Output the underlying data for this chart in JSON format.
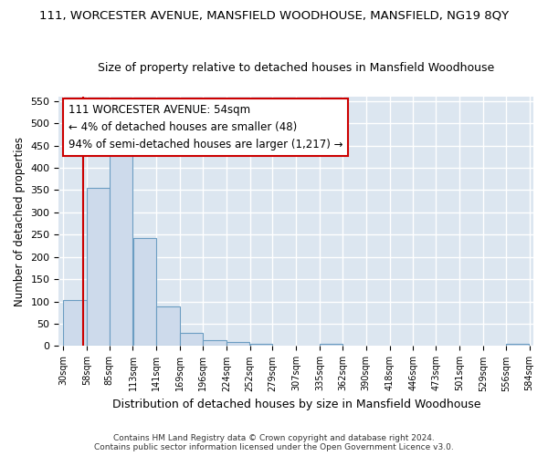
{
  "title": "111, WORCESTER AVENUE, MANSFIELD WOODHOUSE, MANSFIELD, NG19 8QY",
  "subtitle": "Size of property relative to detached houses in Mansfield Woodhouse",
  "xlabel": "Distribution of detached houses by size in Mansfield Woodhouse",
  "ylabel": "Number of detached properties",
  "footer_line1": "Contains HM Land Registry data © Crown copyright and database right 2024.",
  "footer_line2": "Contains public sector information licensed under the Open Government Licence v3.0.",
  "bar_edges": [
    30,
    58,
    85,
    113,
    141,
    169,
    196,
    224,
    252,
    279,
    307,
    335,
    362,
    390,
    418,
    446,
    473,
    501,
    529,
    556,
    584
  ],
  "bar_heights": [
    103,
    354,
    450,
    242,
    88,
    30,
    14,
    10,
    6,
    0,
    0,
    5,
    0,
    0,
    0,
    0,
    0,
    0,
    0,
    5
  ],
  "bar_color": "#cddaeb",
  "bar_edge_color": "#6b9dc2",
  "bar_linewidth": 0.8,
  "property_size": 54,
  "vline_color": "#cc0000",
  "annotation_line1": "111 WORCESTER AVENUE: 54sqm",
  "annotation_line2": "← 4% of detached houses are smaller (48)",
  "annotation_line3": "94% of semi-detached houses are larger (1,217) →",
  "annotation_box_color": "#ffffff",
  "annotation_box_edge": "#cc0000",
  "ylim": [
    0,
    560
  ],
  "yticks": [
    0,
    50,
    100,
    150,
    200,
    250,
    300,
    350,
    400,
    450,
    500,
    550
  ],
  "background_color": "#ffffff",
  "axes_background": "#dce6f0",
  "grid_color": "#ffffff",
  "title_fontsize": 9.5,
  "subtitle_fontsize": 9.0,
  "xlabel_fontsize": 9.0,
  "ylabel_fontsize": 8.5
}
